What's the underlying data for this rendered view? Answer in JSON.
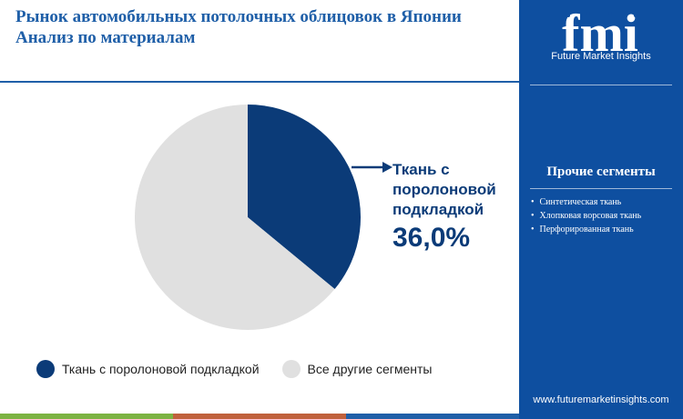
{
  "header": {
    "title_line1": "Рынок автомобильных потолочных облицовок в Японии",
    "title_line2": "Анализ по материалам"
  },
  "chart_data": {
    "type": "pie",
    "categories": [
      "Ткань с поролоновой подкладкой",
      "Все другие сегменты"
    ],
    "values": [
      36.0,
      64.0
    ],
    "colors": [
      "#0b3b78",
      "#e0e0e0"
    ],
    "highlight": {
      "label": "Ткань с поролоновой подкладкой",
      "value_text": "36,0%"
    },
    "legend_position": "bottom"
  },
  "callout": {
    "label_line1": "Ткань с",
    "label_line2": "поролоновой",
    "label_line3": "подкладкой",
    "value": "36,0%"
  },
  "legend": {
    "items": [
      {
        "label": "Ткань с поролоновой подкладкой",
        "color": "#0b3b78"
      },
      {
        "label": "Все другие сегменты",
        "color": "#e0e0e0"
      }
    ]
  },
  "sidebar": {
    "logo_letters": "fmi",
    "logo_caption": "Future Market Insights",
    "other_title": "Прочие сегменты",
    "other_items": [
      "Синтетическая ткань",
      "Хлопковая ворсовая ткань",
      "Перфорированная ткань"
    ],
    "url": "www.futuremarketinsights.com"
  },
  "colors": {
    "accent": "#1f5fa8",
    "sidebar_bg": "#0e4fa0",
    "dark_navy": "#0b3b78",
    "bar_green": "#7cb342",
    "bar_orange": "#c0613c",
    "bar_blue": "#1f5fa8"
  }
}
